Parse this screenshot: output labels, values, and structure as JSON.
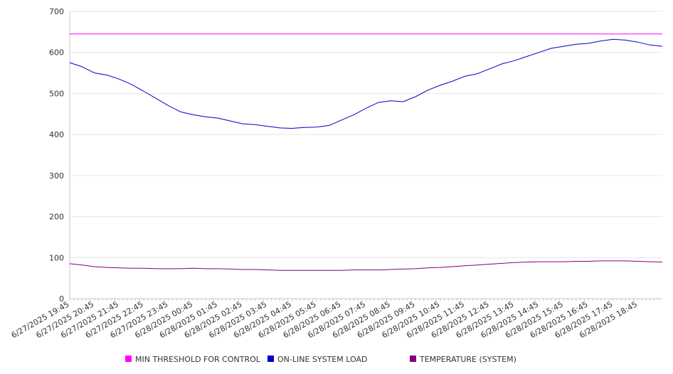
{
  "chart_data": {
    "type": "line",
    "title": "",
    "xlabel": "",
    "ylabel": "",
    "ylim": [
      0,
      700
    ],
    "yticks": [
      0,
      100,
      200,
      300,
      400,
      500,
      600,
      700
    ],
    "grid": true,
    "legend_position": "bottom",
    "x_tick_labels": [
      "6/27/2025 19:45",
      "6/27/2025 20:45",
      "6/27/2025 21:45",
      "6/27/2025 22:45",
      "6/27/2025 23:45",
      "6/28/2025 00:45",
      "6/28/2025 01:45",
      "6/28/2025 02:45",
      "6/28/2025 03:45",
      "6/28/2025 04:45",
      "6/28/2025 05:45",
      "6/28/2025 06:45",
      "6/28/2025 07:45",
      "6/28/2025 08:45",
      "6/28/2025 09:45",
      "6/28/2025 10:45",
      "6/28/2025 11:45",
      "6/28/2025 12:45",
      "6/28/2025 13:45",
      "6/28/2025 14:45",
      "6/28/2025 15:45",
      "6/28/2025 16:45",
      "6/28/2025 17:45",
      "6/28/2025 18:45"
    ],
    "x": [
      "6/27/2025 19:45",
      "6/27/2025 20:15",
      "6/27/2025 20:45",
      "6/27/2025 21:15",
      "6/27/2025 21:45",
      "6/27/2025 22:15",
      "6/27/2025 22:45",
      "6/27/2025 23:15",
      "6/27/2025 23:45",
      "6/28/2025 00:15",
      "6/28/2025 00:45",
      "6/28/2025 01:15",
      "6/28/2025 01:45",
      "6/28/2025 02:15",
      "6/28/2025 02:45",
      "6/28/2025 03:15",
      "6/28/2025 03:45",
      "6/28/2025 04:15",
      "6/28/2025 04:45",
      "6/28/2025 05:15",
      "6/28/2025 05:45",
      "6/28/2025 06:15",
      "6/28/2025 06:45",
      "6/28/2025 07:15",
      "6/28/2025 07:45",
      "6/28/2025 08:15",
      "6/28/2025 08:45",
      "6/28/2025 09:15",
      "6/28/2025 09:45",
      "6/28/2025 10:15",
      "6/28/2025 10:45",
      "6/28/2025 11:15",
      "6/28/2025 11:45",
      "6/28/2025 12:15",
      "6/28/2025 12:45",
      "6/28/2025 13:15",
      "6/28/2025 13:45",
      "6/28/2025 14:15",
      "6/28/2025 14:45",
      "6/28/2025 15:15",
      "6/28/2025 15:45",
      "6/28/2025 16:15",
      "6/28/2025 16:45",
      "6/28/2025 17:15",
      "6/28/2025 17:45",
      "6/28/2025 18:15",
      "6/28/2025 18:45",
      "6/28/2025 19:15",
      "6/28/2025 19:30"
    ],
    "series": [
      {
        "name": "MIN THRESHOLD FOR CONTROL",
        "color": "#ff00ff",
        "values": [
          645,
          645,
          645,
          645,
          645,
          645,
          645,
          645,
          645,
          645,
          645,
          645,
          645,
          645,
          645,
          645,
          645,
          645,
          645,
          645,
          645,
          645,
          645,
          645,
          645,
          645,
          645,
          645,
          645,
          645,
          645,
          645,
          645,
          645,
          645,
          645,
          645,
          645,
          645,
          645,
          645,
          645,
          645,
          645,
          645,
          645,
          645,
          645,
          645
        ]
      },
      {
        "name": "ON-LINE SYSTEM LOAD",
        "color": "#0000cc",
        "values": [
          575,
          565,
          550,
          545,
          535,
          522,
          505,
          488,
          470,
          455,
          448,
          443,
          440,
          433,
          426,
          424,
          420,
          416,
          415,
          417,
          418,
          422,
          435,
          448,
          464,
          478,
          482,
          480,
          492,
          508,
          520,
          530,
          542,
          548,
          560,
          572,
          580,
          590,
          600,
          610,
          615,
          620,
          622,
          628,
          632,
          630,
          625,
          618,
          615
        ]
      },
      {
        "name": "TEMPERATURE (SYSTEM)",
        "color": "#800080",
        "values": [
          85,
          82,
          78,
          76,
          75,
          74,
          74,
          73,
          73,
          73,
          74,
          73,
          73,
          72,
          71,
          71,
          70,
          69,
          69,
          69,
          69,
          69,
          69,
          70,
          70,
          70,
          71,
          72,
          73,
          75,
          76,
          78,
          80,
          82,
          84,
          86,
          88,
          89,
          90,
          90,
          90,
          91,
          91,
          92,
          92,
          92,
          91,
          90,
          89
        ]
      }
    ]
  }
}
